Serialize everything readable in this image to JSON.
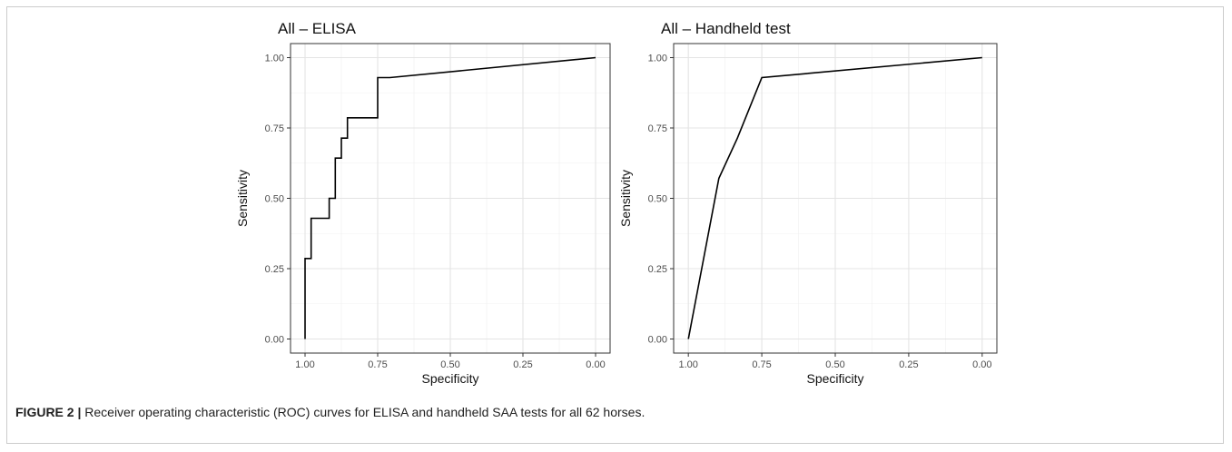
{
  "figure": {
    "label": "FIGURE 2 |",
    "caption": "Receiver operating characteristic (ROC) curves for ELISA and handheld SAA tests for all 62 horses."
  },
  "chart_data": [
    {
      "type": "line",
      "title": "All – ELISA",
      "xlabel": "Specificity",
      "ylabel": "Sensitivity",
      "xlim": [
        1.0,
        0.0
      ],
      "x_reversed": true,
      "ylim": [
        0.0,
        1.0
      ],
      "x_ticks": [
        "1.00",
        "0.75",
        "0.50",
        "0.25",
        "0.00"
      ],
      "y_ticks": [
        "0.00",
        "0.25",
        "0.50",
        "0.75",
        "1.00"
      ],
      "grid": true,
      "series": [
        {
          "color": "#000000",
          "x": [
            1.0,
            1.0,
            0.979,
            0.979,
            0.917,
            0.917,
            0.896,
            0.896,
            0.875,
            0.875,
            0.854,
            0.854,
            0.75,
            0.75,
            0.708,
            0.0
          ],
          "y": [
            0.0,
            0.286,
            0.286,
            0.429,
            0.429,
            0.5,
            0.5,
            0.643,
            0.643,
            0.714,
            0.714,
            0.786,
            0.786,
            0.929,
            0.929,
            1.0
          ]
        }
      ]
    },
    {
      "type": "line",
      "title": "All – Handheld test",
      "xlabel": "Specificity",
      "ylabel": "Sensitivity",
      "xlim": [
        1.0,
        0.0
      ],
      "x_reversed": true,
      "ylim": [
        0.0,
        1.0
      ],
      "x_ticks": [
        "1.00",
        "0.75",
        "0.50",
        "0.25",
        "0.00"
      ],
      "y_ticks": [
        "0.00",
        "0.25",
        "0.50",
        "0.75",
        "1.00"
      ],
      "grid": true,
      "series": [
        {
          "color": "#000000",
          "x": [
            1.0,
            0.896,
            0.833,
            0.75,
            0.0
          ],
          "y": [
            0.0,
            0.571,
            0.714,
            0.929,
            1.0
          ]
        }
      ]
    }
  ]
}
